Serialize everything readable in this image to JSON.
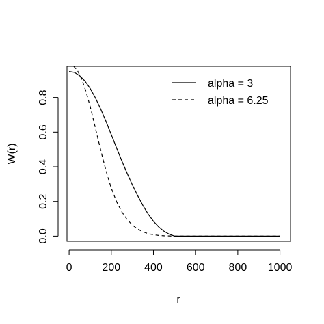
{
  "chart_data": {
    "type": "line",
    "title": "",
    "xlabel": "r",
    "ylabel": "W(r)",
    "xlim": [
      -10,
      1050
    ],
    "ylim": [
      -0.03,
      0.98
    ],
    "grid": false,
    "legend_position": "top-right",
    "x_ticks": [
      0,
      200,
      400,
      600,
      800,
      1000
    ],
    "x_tick_labels": [
      "0",
      "200",
      "400",
      "600",
      "800",
      "1000"
    ],
    "y_ticks": [
      0.0,
      0.2,
      0.4,
      0.6,
      0.8
    ],
    "y_tick_labels": [
      "0.0",
      "0.2",
      "0.4",
      "0.6",
      "0.8"
    ],
    "series": [
      {
        "name": "alpha = 3",
        "line_style": "solid",
        "color": "#000000",
        "x": [
          0,
          25,
          50,
          75,
          100,
          125,
          150,
          175,
          200,
          225,
          250,
          275,
          300,
          325,
          350,
          375,
          400,
          425,
          450,
          475,
          500,
          600,
          700,
          800,
          900,
          1000
        ],
        "y": [
          0.95,
          0.945,
          0.926,
          0.895,
          0.852,
          0.797,
          0.733,
          0.662,
          0.586,
          0.509,
          0.434,
          0.363,
          0.296,
          0.234,
          0.177,
          0.127,
          0.086,
          0.053,
          0.028,
          0.011,
          0.0,
          0.0,
          0.0,
          0.0,
          0.0,
          0.0
        ]
      },
      {
        "name": "alpha = 6.25",
        "line_style": "dashed",
        "color": "#000000",
        "x": [
          22,
          40,
          60,
          80,
          100,
          120,
          140,
          160,
          180,
          200,
          225,
          250,
          275,
          300,
          325,
          350,
          375,
          400,
          425,
          450,
          475,
          500,
          600,
          700,
          800,
          900,
          1000
        ],
        "y": [
          0.98,
          0.955,
          0.905,
          0.835,
          0.748,
          0.648,
          0.546,
          0.447,
          0.356,
          0.277,
          0.199,
          0.14,
          0.096,
          0.064,
          0.041,
          0.025,
          0.014,
          0.008,
          0.004,
          0.002,
          0.001,
          0.0,
          0.0,
          0.0,
          0.0,
          0.0,
          0.0
        ]
      }
    ]
  }
}
